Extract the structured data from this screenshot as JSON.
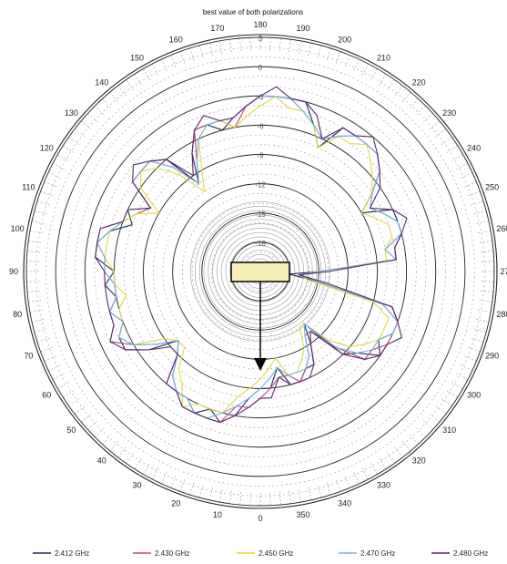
{
  "chart_data": {
    "type": "polar",
    "title": "best value of both polarizations",
    "radial_axis": {
      "min": -21,
      "max": 3,
      "tick_labels": [
        "3",
        "0",
        "-3",
        "-6",
        "-9",
        "-12",
        "-15",
        "-18"
      ]
    },
    "angle_tick_labels": [
      "0",
      "10",
      "20",
      "30",
      "40",
      "50",
      "60",
      "70",
      "80",
      "90",
      "100",
      "110",
      "120",
      "130",
      "140",
      "150",
      "160",
      "170",
      "180",
      "190",
      "200",
      "210",
      "220",
      "230",
      "240",
      "250",
      "260",
      "270",
      "280",
      "290",
      "300",
      "310",
      "320",
      "330",
      "340",
      "350"
    ],
    "series": [
      {
        "name": "2.412 GHz",
        "color": "#1f2a5a",
        "values": [
          -9,
          -8,
          -6,
          -5,
          -6,
          -5,
          -6,
          -6,
          -7,
          -9,
          -10,
          -7,
          -5,
          -5,
          -6,
          -5,
          -6,
          -5,
          -6,
          -4,
          -4,
          -5,
          -7,
          -6,
          -8,
          -5,
          -5,
          -5,
          -6,
          -10,
          -7,
          -5,
          -5,
          -6,
          -5,
          -4,
          -3,
          -3,
          -3,
          -3,
          -5,
          -7,
          -4,
          -4,
          -4,
          -4,
          -5,
          -7,
          -9,
          -6,
          -6,
          -6,
          -7,
          -7,
          -15,
          -18,
          -15,
          -7,
          -6,
          -6,
          -7,
          -6,
          -8,
          -9,
          -14,
          -12,
          -10,
          -10,
          -9,
          -9,
          -11,
          -9
        ]
      },
      {
        "name": "2.430 GHz",
        "color": "#b84a7a",
        "values": [
          -8,
          -7,
          -7,
          -5,
          -5,
          -5,
          -5,
          -6,
          -6,
          -9,
          -10,
          -8,
          -6,
          -4,
          -5,
          -5,
          -6,
          -6,
          -5,
          -5,
          -4,
          -4,
          -6,
          -7,
          -8,
          -5,
          -5,
          -5,
          -7,
          -10,
          -8,
          -5,
          -5,
          -5,
          -6,
          -4,
          -3,
          -3,
          -3,
          -4,
          -5,
          -6,
          -5,
          -4,
          -4,
          -4,
          -5,
          -7,
          -8,
          -7,
          -6,
          -6,
          -8,
          -7,
          -15,
          -17,
          -15,
          -8,
          -6,
          -6,
          -6,
          -7,
          -7,
          -10,
          -13,
          -13,
          -11,
          -10,
          -9,
          -10,
          -10,
          -9
        ]
      },
      {
        "name": "2.450 GHz",
        "color": "#e0d93a",
        "values": [
          -10,
          -9,
          -8,
          -6,
          -6,
          -6,
          -5,
          -7,
          -8,
          -10,
          -10,
          -9,
          -6,
          -5,
          -6,
          -6,
          -7,
          -6,
          -6,
          -5,
          -5,
          -5,
          -6,
          -7,
          -9,
          -6,
          -5,
          -6,
          -8,
          -11,
          -9,
          -6,
          -5,
          -5,
          -6,
          -5,
          -4,
          -3,
          -4,
          -4,
          -5,
          -7,
          -5,
          -5,
          -4,
          -5,
          -6,
          -7,
          -9,
          -8,
          -7,
          -7,
          -8,
          -8,
          -15,
          -17,
          -16,
          -9,
          -7,
          -7,
          -7,
          -8,
          -9,
          -11,
          -14,
          -14,
          -12,
          -11,
          -10,
          -10,
          -12,
          -11
        ]
      },
      {
        "name": "2.470 GHz",
        "color": "#6fb6e0",
        "values": [
          -9,
          -8,
          -7,
          -6,
          -5,
          -5,
          -6,
          -6,
          -7,
          -9,
          -10,
          -8,
          -6,
          -5,
          -6,
          -5,
          -6,
          -6,
          -5,
          -5,
          -4,
          -5,
          -6,
          -6,
          -8,
          -5,
          -5,
          -5,
          -7,
          -10,
          -8,
          -6,
          -5,
          -5,
          -5,
          -4,
          -3,
          -3,
          -3,
          -4,
          -5,
          -6,
          -5,
          -4,
          -4,
          -4,
          -5,
          -7,
          -8,
          -7,
          -6,
          -6,
          -8,
          -7,
          -15,
          -17,
          -15,
          -8,
          -6,
          -6,
          -7,
          -7,
          -8,
          -10,
          -14,
          -13,
          -11,
          -10,
          -10,
          -10,
          -11,
          -10
        ]
      },
      {
        "name": "2.480 GHz",
        "color": "#5a2a6a",
        "values": [
          -8,
          -7,
          -6,
          -5,
          -5,
          -5,
          -5,
          -6,
          -6,
          -9,
          -9,
          -7,
          -5,
          -4,
          -5,
          -5,
          -5,
          -5,
          -5,
          -4,
          -4,
          -4,
          -6,
          -6,
          -8,
          -5,
          -4,
          -5,
          -6,
          -9,
          -7,
          -5,
          -4,
          -5,
          -5,
          -4,
          -3,
          -2,
          -3,
          -3,
          -4,
          -6,
          -4,
          -4,
          -3,
          -4,
          -5,
          -6,
          -8,
          -6,
          -5,
          -6,
          -7,
          -7,
          -14,
          -17,
          -14,
          -7,
          -6,
          -5,
          -6,
          -6,
          -7,
          -9,
          -13,
          -12,
          -10,
          -9,
          -9,
          -9,
          -10,
          -8
        ]
      }
    ],
    "angle_step_deg": 5,
    "grid": true,
    "legend": "bottom"
  },
  "colors": {
    "rings": "#222222",
    "minor": "#9a9a9a",
    "inner_band": "#a8a8a8",
    "device": "#f6f0b8"
  },
  "icons": {
    "device": "device-rectangle-icon",
    "arrow": "arrow-down-icon"
  }
}
